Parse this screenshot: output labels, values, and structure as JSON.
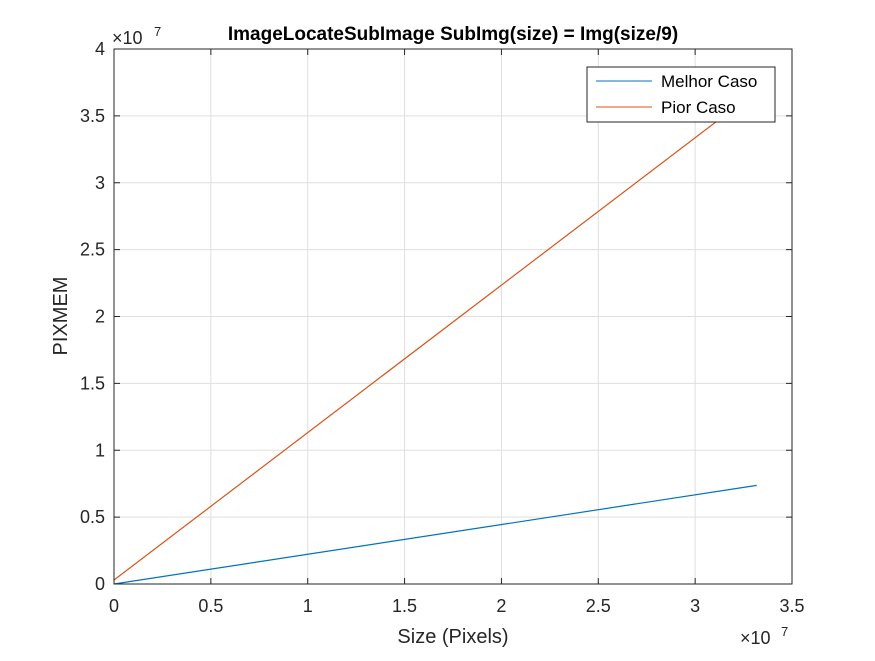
{
  "chart_data": {
    "type": "line",
    "title": "ImageLocateSubImage SubImg(size) = Img(size/9)",
    "xlabel": "Size (Pixels)",
    "ylabel": "PIXMEM",
    "x_exponent_label": "×10",
    "x_exponent_power": "7",
    "y_exponent_label": "×10",
    "y_exponent_power": "7",
    "xlim": [
      0,
      35000000
    ],
    "ylim": [
      0,
      40000000
    ],
    "x_ticks": [
      0,
      5000000,
      10000000,
      15000000,
      20000000,
      25000000,
      30000000,
      35000000
    ],
    "x_tick_labels": [
      "0",
      "0.5",
      "1",
      "1.5",
      "2",
      "2.5",
      "3",
      "3.5"
    ],
    "y_ticks": [
      0,
      5000000,
      10000000,
      15000000,
      20000000,
      25000000,
      30000000,
      35000000,
      40000000
    ],
    "y_tick_labels": [
      "0",
      "0.5",
      "1",
      "1.5",
      "2",
      "2.5",
      "3",
      "3.5",
      "4"
    ],
    "grid": true,
    "legend_position": "top-right",
    "series": [
      {
        "name": "Melhor Caso",
        "color": "#0072BD",
        "x": [
          0,
          33177600
        ],
        "y": [
          0,
          7372800
        ]
      },
      {
        "name": "Pior Caso",
        "color": "#D95319",
        "x": [
          0,
          33177600
        ],
        "y": [
          300000,
          36864000
        ]
      }
    ]
  }
}
